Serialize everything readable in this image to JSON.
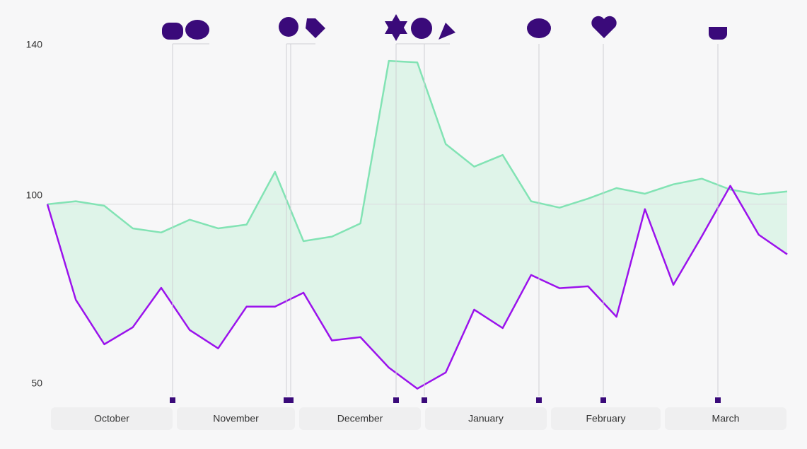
{
  "chart_data": {
    "type": "line",
    "categories": [
      null,
      null,
      null,
      null,
      null,
      null,
      null,
      null,
      null,
      null,
      null,
      null,
      null,
      null,
      null,
      null,
      null,
      null,
      null,
      null,
      null,
      null,
      null,
      null,
      null,
      null,
      null
    ],
    "series": [
      {
        "color": "#82e3b4",
        "values": [
          100,
          100.8,
          99.6,
          93.6,
          92.5,
          95.9,
          93.6,
          94.6,
          108.6,
          90.2,
          91.4,
          94.9,
          138.1,
          137.7,
          116.0,
          110.0,
          113.1,
          100.8,
          99.1,
          101.5,
          104.3,
          102.8,
          105.3,
          106.8,
          103.9,
          102.6,
          103.4
        ]
      },
      {
        "color": "#9b12ec",
        "values": [
          100,
          74.6,
          62.8,
          67.3,
          77.8,
          66.6,
          61.7,
          72.8,
          72.8,
          76.5,
          63.8,
          64.7,
          56.6,
          51.0,
          55.3,
          72.0,
          67.1,
          81.2,
          77.7,
          78.2,
          70.1,
          98.7,
          78.6,
          91.5,
          104.9,
          91.9,
          86.7
        ]
      }
    ],
    "fill_color": "#dff4e9",
    "months": [
      "October",
      "November",
      "December",
      "January",
      "February",
      "March"
    ],
    "ylim": [
      50,
      140
    ],
    "yticks": [
      50,
      100,
      140
    ],
    "grid": true
  }
}
